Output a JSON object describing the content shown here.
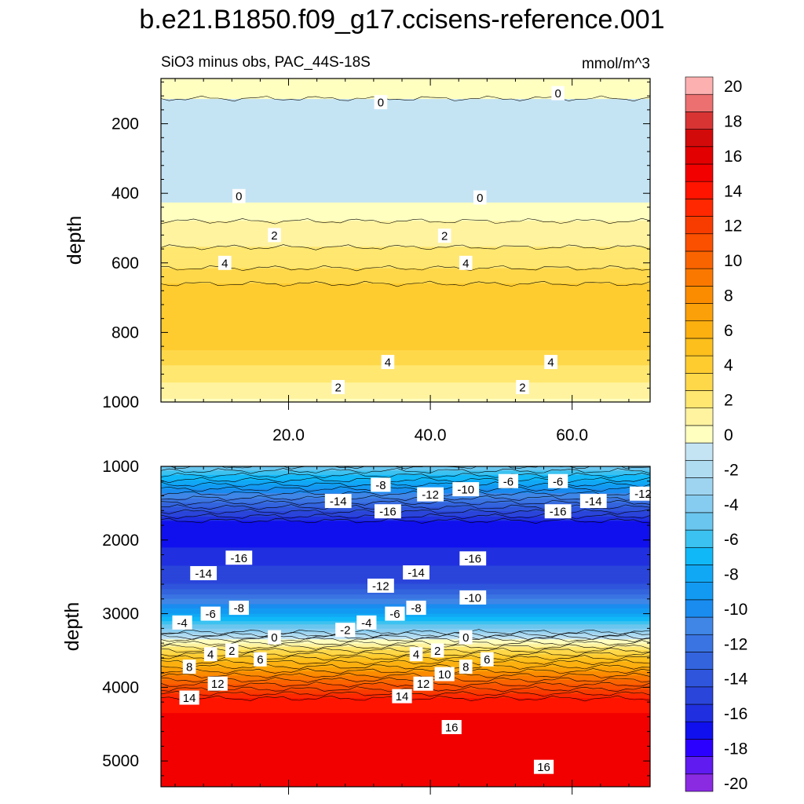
{
  "chart_data": [
    {
      "type": "contour",
      "panel": "upper",
      "title": "b.e21.B1850.f09_g17.ccisens-reference.001",
      "subtitle_left": "SiO3 minus obs, PAC_44S-18S",
      "subtitle_right": "mmol/m^3",
      "xlabel": "",
      "ylabel": "depth",
      "xlim": [
        2,
        71
      ],
      "ylim": [
        1000,
        70
      ],
      "x_ticks": [
        20,
        40,
        60
      ],
      "x_tick_labels": [
        "20.0",
        "40.0",
        "60.0"
      ],
      "y_ticks": [
        200,
        400,
        600,
        800,
        1000
      ],
      "y_tick_labels": [
        "200",
        "400",
        "600",
        "800",
        "1000"
      ],
      "profile": {
        "depth": [
          70,
          120,
          135,
          410,
          440,
          520,
          590,
          640,
          680,
          830,
          870,
          920,
          970,
          1000
        ],
        "value": [
          0.5,
          0.5,
          -0.5,
          -0.5,
          0.5,
          1.5,
          2.5,
          3.5,
          4.5,
          4.5,
          3.5,
          2.5,
          1.5,
          0.8
        ]
      },
      "contour_labels": [
        {
          "x": 33,
          "depth": 138,
          "text": "0"
        },
        {
          "x": 58,
          "depth": 112,
          "text": "0"
        },
        {
          "x": 13,
          "depth": 408,
          "text": "0"
        },
        {
          "x": 47,
          "depth": 412,
          "text": "0"
        },
        {
          "x": 18,
          "depth": 520,
          "text": "2"
        },
        {
          "x": 42,
          "depth": 522,
          "text": "2"
        },
        {
          "x": 11,
          "depth": 600,
          "text": "4"
        },
        {
          "x": 45,
          "depth": 600,
          "text": "4"
        },
        {
          "x": 34,
          "depth": 885,
          "text": "4"
        },
        {
          "x": 57,
          "depth": 885,
          "text": "4"
        },
        {
          "x": 27,
          "depth": 957,
          "text": "2"
        },
        {
          "x": 53,
          "depth": 957,
          "text": "2"
        }
      ]
    },
    {
      "type": "contour",
      "panel": "lower",
      "ylabel": "depth",
      "xlim": [
        2,
        71
      ],
      "ylim": [
        5350,
        1000
      ],
      "y_ticks": [
        1000,
        2000,
        3000,
        4000,
        5000
      ],
      "y_tick_labels": [
        "1000",
        "2000",
        "3000",
        "4000",
        "5000"
      ],
      "profile": {
        "depth": [
          1000,
          1800,
          2100,
          2600,
          3000,
          3250,
          3350,
          3600,
          3900,
          4150,
          4350,
          5350
        ],
        "value": [
          -4,
          -17,
          -16,
          -14,
          -8,
          -3,
          0,
          5,
          10,
          14,
          15,
          15
        ]
      },
      "contour_labels": [
        {
          "x": 33,
          "depth": 1250,
          "text": "-8"
        },
        {
          "x": 45,
          "depth": 1310,
          "text": "-10"
        },
        {
          "x": 51,
          "depth": 1200,
          "text": "-6"
        },
        {
          "x": 58,
          "depth": 1200,
          "text": "-6"
        },
        {
          "x": 40,
          "depth": 1380,
          "text": "-12"
        },
        {
          "x": 70,
          "depth": 1370,
          "text": "-12"
        },
        {
          "x": 27,
          "depth": 1470,
          "text": "-14"
        },
        {
          "x": 63,
          "depth": 1470,
          "text": "-14"
        },
        {
          "x": 34,
          "depth": 1610,
          "text": "-16"
        },
        {
          "x": 58,
          "depth": 1610,
          "text": "-16"
        },
        {
          "x": 13,
          "depth": 2240,
          "text": "-16"
        },
        {
          "x": 46,
          "depth": 2250,
          "text": "-16"
        },
        {
          "x": 8,
          "depth": 2450,
          "text": "-14"
        },
        {
          "x": 38,
          "depth": 2440,
          "text": "-14"
        },
        {
          "x": 33,
          "depth": 2620,
          "text": "-12"
        },
        {
          "x": 46,
          "depth": 2780,
          "text": "-10"
        },
        {
          "x": 13,
          "depth": 2920,
          "text": "-8"
        },
        {
          "x": 38,
          "depth": 2920,
          "text": "-8"
        },
        {
          "x": 9,
          "depth": 3000,
          "text": "-6"
        },
        {
          "x": 35,
          "depth": 3000,
          "text": "-6"
        },
        {
          "x": 5,
          "depth": 3120,
          "text": "-4"
        },
        {
          "x": 31,
          "depth": 3120,
          "text": "-4"
        },
        {
          "x": 28,
          "depth": 3220,
          "text": "-2"
        },
        {
          "x": 18,
          "depth": 3320,
          "text": "0"
        },
        {
          "x": 45,
          "depth": 3320,
          "text": "0"
        },
        {
          "x": 12,
          "depth": 3500,
          "text": "2"
        },
        {
          "x": 41,
          "depth": 3500,
          "text": "2"
        },
        {
          "x": 9,
          "depth": 3550,
          "text": "4"
        },
        {
          "x": 38,
          "depth": 3550,
          "text": "4"
        },
        {
          "x": 16,
          "depth": 3620,
          "text": "6"
        },
        {
          "x": 48,
          "depth": 3620,
          "text": "6"
        },
        {
          "x": 6,
          "depth": 3720,
          "text": "8"
        },
        {
          "x": 45,
          "depth": 3720,
          "text": "8"
        },
        {
          "x": 42,
          "depth": 3820,
          "text": "10"
        },
        {
          "x": 10,
          "depth": 3950,
          "text": "12"
        },
        {
          "x": 39,
          "depth": 3950,
          "text": "12"
        },
        {
          "x": 6,
          "depth": 4140,
          "text": "14"
        },
        {
          "x": 36,
          "depth": 4120,
          "text": "14"
        },
        {
          "x": 43,
          "depth": 4540,
          "text": "16"
        },
        {
          "x": 56,
          "depth": 5080,
          "text": "16"
        }
      ]
    },
    {
      "type": "colorbar",
      "levels": [
        -20,
        -19,
        -18,
        -17,
        -16,
        -15,
        -14,
        -13,
        -12,
        -11,
        -10,
        -9,
        -8,
        -7,
        -6,
        -5,
        -4,
        -3,
        -2,
        -1,
        0,
        1,
        2,
        3,
        4,
        5,
        6,
        7,
        8,
        9,
        10,
        11,
        12,
        13,
        14,
        15,
        16,
        17,
        18,
        19,
        20
      ],
      "tick_labels": [
        "20",
        "18",
        "16",
        "14",
        "12",
        "10",
        "8",
        "6",
        "4",
        "2",
        "0",
        "-2",
        "-4",
        "-6",
        "-8",
        "-10",
        "-12",
        "-14",
        "-16",
        "-18",
        "-20"
      ],
      "colors": [
        "#8a2be2",
        "#5f1bf0",
        "#2c00ff",
        "#1010ee",
        "#2030e0",
        "#2a45da",
        "#2e55db",
        "#3364de",
        "#3a74e2",
        "#3f86e6",
        "#1a8cf0",
        "#129af2",
        "#10a8f5",
        "#10b8f8",
        "#3cc2f0",
        "#6ac6ee",
        "#86ccf0",
        "#9ed4f0",
        "#b0dcf2",
        "#c4e4f4",
        "#ffffc0",
        "#fff3a0",
        "#ffe770",
        "#ffd84a",
        "#ffcc30",
        "#fcbf1c",
        "#fcb010",
        "#fba008",
        "#fb8c00",
        "#fb7800",
        "#fa6400",
        "#fa5000",
        "#f83c00",
        "#ff2800",
        "#ff1400",
        "#f20000",
        "#e20000",
        "#d20a0a",
        "#d83434",
        "#ec7070",
        "#fcb0b0"
      ]
    }
  ]
}
